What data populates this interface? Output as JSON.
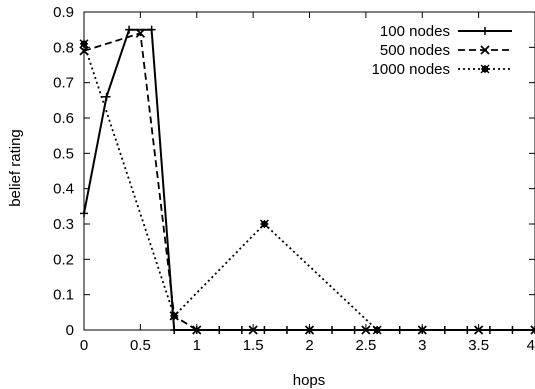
{
  "chart_data": {
    "type": "line",
    "xlabel": "hops",
    "ylabel": "belief rating",
    "xlim": [
      0,
      4
    ],
    "ylim": [
      0,
      0.9
    ],
    "xticks": [
      "0",
      "0.5",
      "1",
      "1.5",
      "2",
      "2.5",
      "3",
      "3.5",
      "4"
    ],
    "yticks": [
      "0",
      "0.1",
      "0.2",
      "0.3",
      "0.4",
      "0.5",
      "0.6",
      "0.7",
      "0.8",
      "0.9"
    ],
    "grid": false,
    "legend_position": "top-right",
    "series": [
      {
        "name": "100 nodes",
        "line_style": "solid",
        "marker": "plus",
        "x": [
          0,
          0.2,
          0.4,
          0.6,
          0.8,
          1.0,
          1.2,
          1.4,
          1.6,
          1.8,
          2.0,
          2.2,
          2.4,
          2.6,
          2.8,
          3.0,
          3.2,
          3.4,
          3.6,
          3.8,
          4.0
        ],
        "y": [
          0.33,
          0.66,
          0.85,
          0.85,
          0,
          0,
          0,
          0,
          0,
          0,
          0,
          0,
          0,
          0,
          0,
          0,
          0,
          0,
          0,
          0,
          0
        ]
      },
      {
        "name": "500 nodes",
        "line_style": "dashed",
        "marker": "cross",
        "x": [
          0,
          0.5,
          0.8,
          1.0,
          1.5,
          2.0,
          2.5,
          3.0,
          3.5,
          4.0
        ],
        "y": [
          0.79,
          0.84,
          0.04,
          0,
          0,
          0,
          0,
          0,
          0,
          0
        ]
      },
      {
        "name": "1000 nodes",
        "line_style": "dotted",
        "marker": "star",
        "x": [
          0,
          0.8,
          1.6,
          2.6
        ],
        "y": [
          0.81,
          0.04,
          0.3,
          0
        ]
      }
    ]
  }
}
